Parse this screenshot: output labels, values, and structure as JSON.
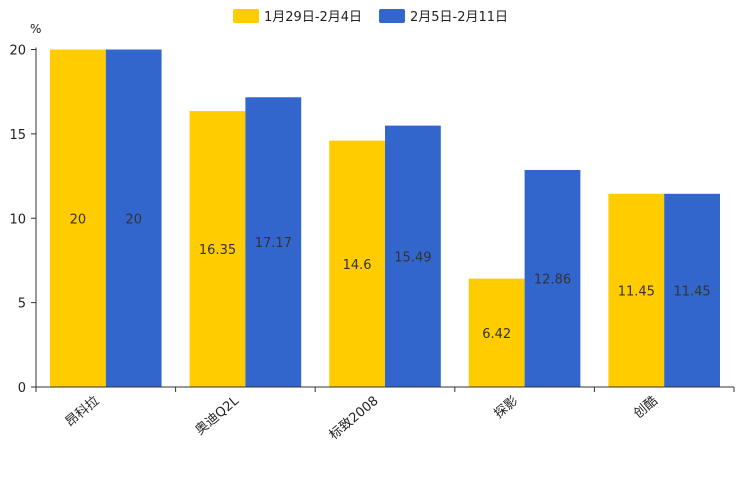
{
  "chart_data": {
    "type": "bar",
    "title": "",
    "unit": "%",
    "xlabel": "",
    "ylabel": "",
    "ylim": [
      0,
      20
    ],
    "yticks": [
      0,
      5,
      10,
      15,
      20
    ],
    "grid": false,
    "legend_position": "top-center",
    "categories": [
      "昂科拉",
      "奥迪Q2L",
      "标致2008",
      "探影",
      "创酷"
    ],
    "series": [
      {
        "name": "1月29日-2月4日",
        "color": "#FFCC00",
        "values": [
          20,
          16.35,
          14.6,
          6.42,
          11.45
        ]
      },
      {
        "name": "2月5日-2月11日",
        "color": "#3366CC",
        "values": [
          20,
          17.17,
          15.49,
          12.86,
          11.45
        ]
      }
    ]
  }
}
